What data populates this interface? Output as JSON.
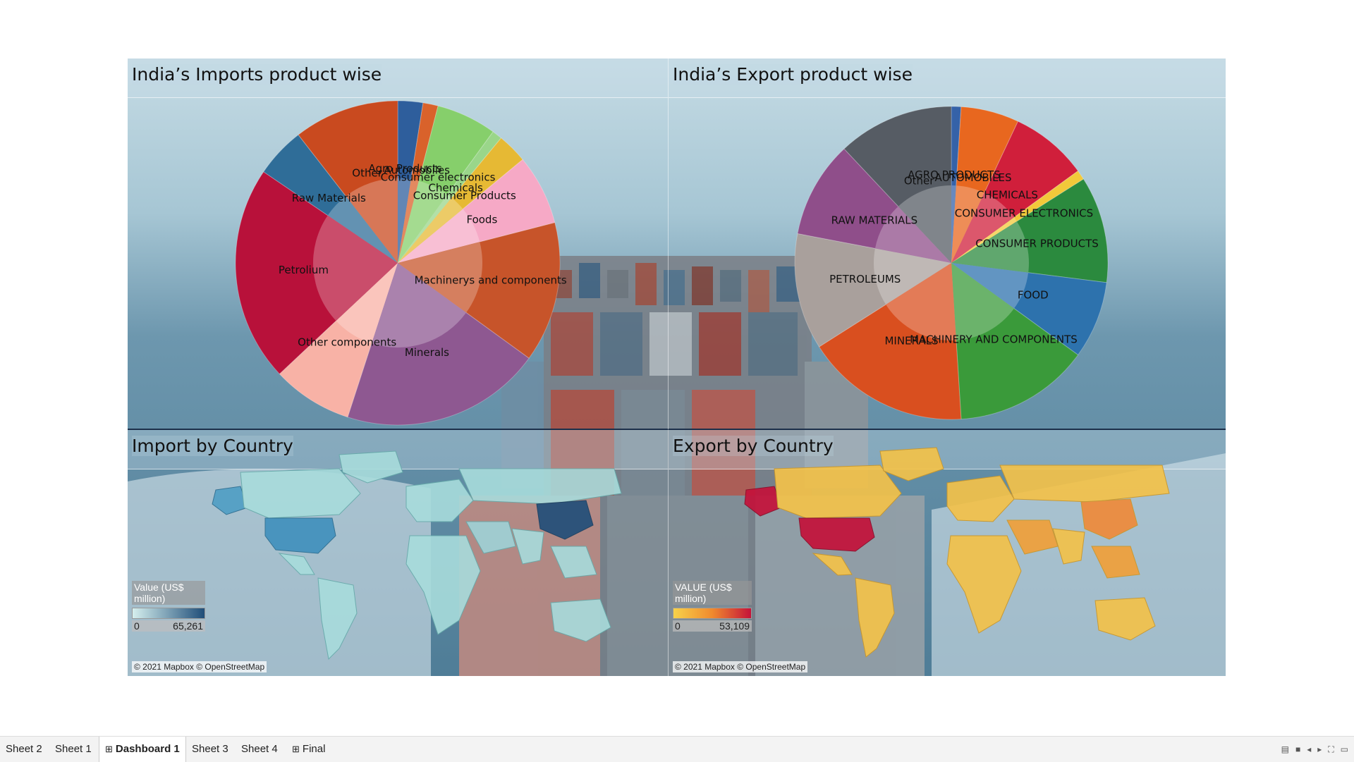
{
  "dashboard": {
    "panels": {
      "imports_product": {
        "title": "India’s Imports product wise"
      },
      "exports_product": {
        "title": "India’s Export product wise"
      },
      "import_country": {
        "title": "Import by Country"
      },
      "export_country": {
        "title": "Export by Country"
      }
    },
    "import_legend": {
      "title": "Value (US$ million)",
      "min": "0",
      "max": "65,261"
    },
    "export_legend": {
      "title": "VALUE (US$ million)",
      "min": "0",
      "max": "53,109"
    },
    "attribution": "© 2021 Mapbox © OpenStreetMap"
  },
  "chart_data": [
    {
      "type": "pie",
      "title": "India’s Imports product wise",
      "categories": [
        "Agro Products",
        "Automobiles",
        "Consumer electronics",
        "Chemicals",
        "Consumer Products",
        "Foods",
        "Machinerys and components",
        "Minerals",
        "Other components",
        "Petrolium",
        "Raw Materials",
        "Other"
      ],
      "values": [
        2.5,
        1.5,
        6,
        1,
        3,
        7,
        14,
        20,
        8,
        21.5,
        5,
        10.5
      ],
      "colors": [
        "#2e5e9c",
        "#d9622b",
        "#86cf6b",
        "#9ad68a",
        "#e6b934",
        "#f6a9c6",
        "#c7542a",
        "#8e5891",
        "#f8b2a6",
        "#b8113a",
        "#2f6d98",
        "#c94a1f"
      ]
    },
    {
      "type": "pie",
      "title": "India’s Export product wise",
      "categories": [
        "AGRO PRODUCTS",
        "AUTOMOBILES",
        "CHEMICALS",
        "CONSUMER ELECTRONICS",
        "CONSUMER PRODUCTS",
        "FOOD",
        "MACHINERY AND COMPONENTS",
        "MINERALS",
        "PETROLEUMS",
        "RAW MATERIALS",
        "Other"
      ],
      "values": [
        1,
        6,
        8,
        1,
        11,
        8,
        14,
        17,
        12,
        10,
        12
      ],
      "colors": [
        "#3562a8",
        "#e8671f",
        "#d01f3b",
        "#f2c93a",
        "#2b8a3e",
        "#2d72ad",
        "#3a9a3a",
        "#d94f1f",
        "#a9a09c",
        "#8f4e8a",
        "#565c64"
      ]
    },
    {
      "type": "map",
      "title": "Import by Country",
      "measure": "Value (US$ million)",
      "range": [
        0,
        65261
      ],
      "color_low": "#bfe3e3",
      "color_high": "#1f4e79"
    },
    {
      "type": "map",
      "title": "Export by Country",
      "measure": "VALUE (US$ million)",
      "range": [
        0,
        53109
      ],
      "color_low": "#f3c24a",
      "color_high": "#c4123a"
    }
  ],
  "tabs": [
    {
      "label": "Sheet 2",
      "active": false,
      "icon": ""
    },
    {
      "label": "Sheet 1",
      "active": false,
      "icon": ""
    },
    {
      "label": "Dashboard 1",
      "active": true,
      "icon": "grid-icon"
    },
    {
      "label": "Sheet 3",
      "active": false,
      "icon": ""
    },
    {
      "label": "Sheet 4",
      "active": false,
      "icon": ""
    },
    {
      "label": "Final",
      "active": false,
      "icon": "grid-icon"
    }
  ]
}
